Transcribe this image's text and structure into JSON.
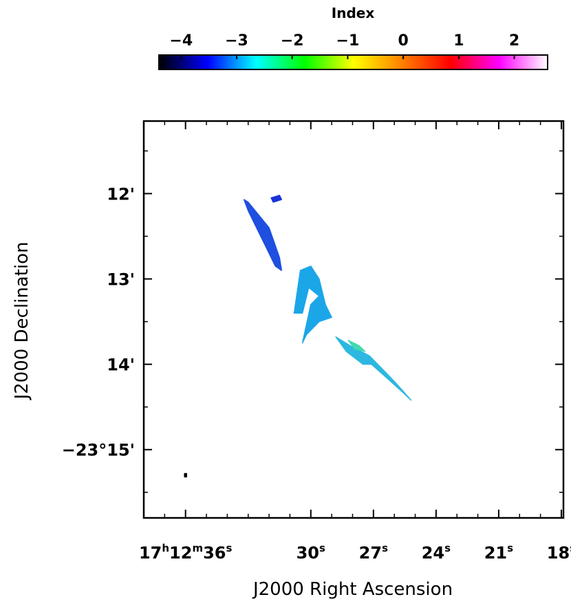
{
  "chart_data": {
    "type": "heatmap",
    "xlabel": "J2000 Right Ascension",
    "ylabel": "J2000 Declination",
    "x_ticks": [
      {
        "h": "17",
        "m": "12",
        "s": "36",
        "sec": 36
      },
      {
        "s": "30",
        "sec": 30
      },
      {
        "s": "27",
        "sec": 27
      },
      {
        "s": "24",
        "sec": 24
      },
      {
        "s": "21",
        "sec": 21
      },
      {
        "s": "18",
        "sec": 18
      }
    ],
    "x_range_sec": [
      38.0,
      17.9
    ],
    "y_ticks": [
      {
        "label": "12'",
        "arcmin": 12
      },
      {
        "label": "13'",
        "arcmin": 13
      },
      {
        "label": "14'",
        "arcmin": 14
      },
      {
        "label": "−23°15'",
        "arcmin": 15
      }
    ],
    "y_range_arcmin": [
      11.15,
      15.8
    ],
    "colorbar": {
      "title": "Index",
      "ticks": [
        "−4",
        "−3",
        "−2",
        "−1",
        "0",
        "1",
        "2"
      ],
      "tick_values": [
        -4,
        -3,
        -2,
        -1,
        0,
        1,
        2
      ],
      "range": [
        -4.4,
        2.6
      ],
      "colors": [
        "#000000",
        "#0000ff",
        "#00ffff",
        "#00ff00",
        "#ffff00",
        "#ff8000",
        "#ff0000",
        "#ff00ff",
        "#ffffff"
      ]
    },
    "features": [
      {
        "name": "filament-upper-left",
        "color": "#1f4fe0",
        "points": [
          [
            33.2,
            12.07
          ],
          [
            33.0,
            12.1
          ],
          [
            32.0,
            12.4
          ],
          [
            31.5,
            12.75
          ],
          [
            31.4,
            12.9
          ],
          [
            31.7,
            12.85
          ],
          [
            32.3,
            12.55
          ],
          [
            33.0,
            12.2
          ]
        ]
      },
      {
        "name": "clump-small-top",
        "color": "#1a32d8",
        "points": [
          [
            31.9,
            12.05
          ],
          [
            31.5,
            12.02
          ],
          [
            31.4,
            12.07
          ],
          [
            31.8,
            12.1
          ]
        ]
      },
      {
        "name": "clump-center",
        "color": "#1ba6e8",
        "points": [
          [
            30.5,
            12.9
          ],
          [
            30.0,
            12.85
          ],
          [
            29.6,
            13.0
          ],
          [
            29.3,
            13.3
          ],
          [
            29.0,
            13.45
          ],
          [
            29.6,
            13.5
          ],
          [
            30.2,
            13.65
          ],
          [
            30.4,
            13.75
          ],
          [
            30.0,
            13.3
          ],
          [
            29.6,
            13.2
          ],
          [
            30.1,
            13.1
          ],
          [
            30.4,
            13.4
          ],
          [
            30.8,
            13.4
          ]
        ]
      },
      {
        "name": "filament-lower-right",
        "color": "#2cb8e0",
        "points": [
          [
            28.8,
            13.68
          ],
          [
            28.0,
            13.8
          ],
          [
            27.2,
            13.9
          ],
          [
            26.6,
            14.05
          ],
          [
            26.0,
            14.2
          ],
          [
            25.2,
            14.42
          ],
          [
            25.5,
            14.35
          ],
          [
            26.4,
            14.15
          ],
          [
            27.1,
            14.0
          ],
          [
            27.5,
            14.0
          ],
          [
            28.3,
            13.85
          ]
        ]
      },
      {
        "name": "filament-green-tint",
        "color": "#44d8b0",
        "points": [
          [
            28.2,
            13.72
          ],
          [
            27.7,
            13.78
          ],
          [
            27.4,
            13.85
          ],
          [
            27.9,
            13.82
          ]
        ]
      },
      {
        "name": "speck-lower-left",
        "color": "#000000",
        "points": [
          [
            36.05,
            15.28
          ],
          [
            35.95,
            15.28
          ],
          [
            35.95,
            15.32
          ],
          [
            36.05,
            15.32
          ]
        ]
      }
    ]
  }
}
